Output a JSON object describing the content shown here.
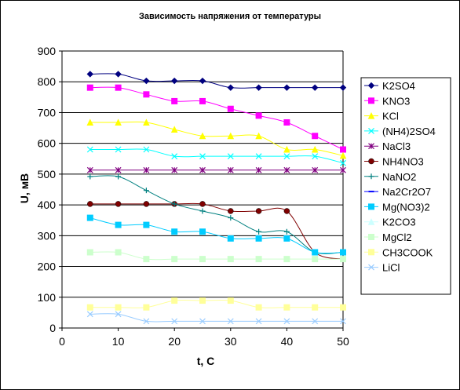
{
  "chart_data": {
    "type": "line",
    "title": "Зависимость напряжения от температуры",
    "xlabel": "t, C",
    "ylabel": "U, мВ",
    "xlim": [
      0,
      50
    ],
    "ylim": [
      0,
      900
    ],
    "xticks": [
      0,
      10,
      20,
      30,
      40,
      50
    ],
    "yticks": [
      0,
      100,
      200,
      300,
      400,
      500,
      600,
      700,
      800,
      900
    ],
    "grid": "horizontal",
    "legend_position": "right",
    "x": [
      5,
      10,
      15,
      20,
      25,
      30,
      35,
      40,
      45,
      50
    ],
    "series": [
      {
        "name": "K2SO4",
        "color": "#000080",
        "marker": "diamond",
        "values": [
          825,
          825,
          803,
          803,
          803,
          781,
          781,
          781,
          781,
          781
        ]
      },
      {
        "name": "KNO3",
        "color": "#ff00ff",
        "marker": "square",
        "values": [
          781,
          781,
          759,
          737,
          737,
          712,
          690,
          668,
          624,
          580
        ]
      },
      {
        "name": "KCl",
        "color": "#ffff00",
        "marker": "triangle",
        "values": [
          668,
          668,
          668,
          645,
          624,
          624,
          624,
          580,
          580,
          560
        ]
      },
      {
        "name": "(NH4)2SO4",
        "color": "#00ffff",
        "marker": "x",
        "values": [
          580,
          580,
          580,
          558,
          558,
          558,
          558,
          558,
          558,
          536
        ]
      },
      {
        "name": "NaCl3",
        "color": "#800080",
        "marker": "star",
        "values": [
          513,
          513,
          513,
          513,
          513,
          513,
          513,
          513,
          513,
          513
        ]
      },
      {
        "name": "NH4NO3",
        "color": "#800000",
        "marker": "circle",
        "values": [
          403,
          403,
          403,
          403,
          403,
          380,
          380,
          380,
          246,
          224
        ]
      },
      {
        "name": "NaNO2",
        "color": "#008080",
        "marker": "plus",
        "values": [
          492,
          492,
          447,
          403,
          380,
          358,
          313,
          313,
          246,
          246
        ]
      },
      {
        "name": "Na2Cr2O7",
        "color": "#0000ff",
        "marker": "dash",
        "values": [
          null,
          null,
          null,
          null,
          null,
          null,
          null,
          null,
          null,
          null
        ]
      },
      {
        "name": "Mg(NO3)2",
        "color": "#00ccff",
        "marker": "square",
        "values": [
          358,
          335,
          335,
          313,
          313,
          291,
          291,
          291,
          246,
          246
        ]
      },
      {
        "name": "K2CO3",
        "color": "#ccffff",
        "marker": "triangle",
        "values": [
          null,
          null,
          null,
          null,
          null,
          null,
          null,
          null,
          null,
          null
        ]
      },
      {
        "name": "MgCl2",
        "color": "#ccffcc",
        "marker": "square",
        "values": [
          246,
          246,
          224,
          224,
          224,
          224,
          224,
          224,
          224,
          224
        ]
      },
      {
        "name": "CH3COOK",
        "color": "#ffff99",
        "marker": "square",
        "values": [
          67,
          67,
          67,
          89,
          89,
          89,
          67,
          67,
          67,
          67
        ]
      },
      {
        "name": "LiCl",
        "color": "#99ccff",
        "marker": "x",
        "values": [
          45,
          45,
          22,
          22,
          22,
          22,
          22,
          22,
          22,
          22
        ]
      }
    ]
  }
}
